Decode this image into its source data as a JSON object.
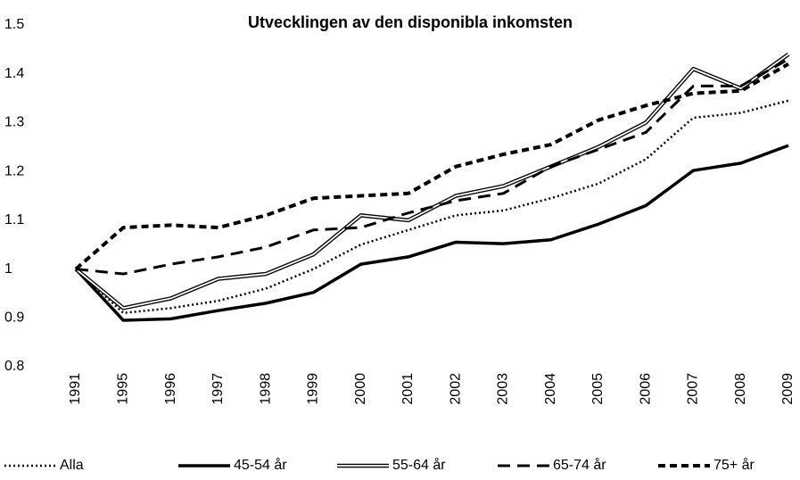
{
  "chart_data": {
    "type": "line",
    "title": "Utvecklingen av den disponibla inkomsten",
    "categories": [
      "1991",
      "1995",
      "1996",
      "1997",
      "1998",
      "1999",
      "2000",
      "2001",
      "2002",
      "2003",
      "2004",
      "2005",
      "2006",
      "2007",
      "2008",
      "2009"
    ],
    "series": [
      {
        "name": "Alla",
        "color": "#000000",
        "line_style": "dotted",
        "values": [
          1,
          0.91,
          0.92,
          0.935,
          0.96,
          1.0,
          1.05,
          1.08,
          1.11,
          1.12,
          1.145,
          1.175,
          1.225,
          1.31,
          1.32,
          1.345
        ]
      },
      {
        "name": "45-54 år",
        "color": "#000000",
        "line_style": "solid",
        "values": [
          1,
          0.895,
          0.898,
          0.915,
          0.93,
          0.952,
          1.01,
          1.025,
          1.055,
          1.052,
          1.06,
          1.092,
          1.13,
          1.202,
          1.217,
          1.253
        ]
      },
      {
        "name": "55-64 år",
        "color": "#000000",
        "line_style": "double",
        "values": [
          1,
          0.92,
          0.94,
          0.98,
          0.99,
          1.03,
          1.11,
          1.1,
          1.15,
          1.17,
          1.21,
          1.25,
          1.3,
          1.41,
          1.37,
          1.44
        ]
      },
      {
        "name": "65-74 år",
        "color": "#000000",
        "line_style": "long-dash",
        "values": [
          1,
          0.99,
          1.01,
          1.025,
          1.045,
          1.08,
          1.085,
          1.115,
          1.14,
          1.155,
          1.21,
          1.245,
          1.28,
          1.375,
          1.375,
          1.43
        ]
      },
      {
        "name": "75+ år",
        "color": "#000000",
        "line_style": "short-dash",
        "values": [
          1,
          1.085,
          1.09,
          1.085,
          1.11,
          1.145,
          1.15,
          1.155,
          1.21,
          1.235,
          1.255,
          1.305,
          1.335,
          1.36,
          1.365,
          1.42
        ]
      }
    ],
    "ylim": [
      0.8,
      1.5
    ],
    "yticks": [
      0.8,
      0.9,
      1,
      1.1,
      1.2,
      1.3,
      1.4,
      1.5
    ],
    "grid": false,
    "legend": "bottom"
  }
}
